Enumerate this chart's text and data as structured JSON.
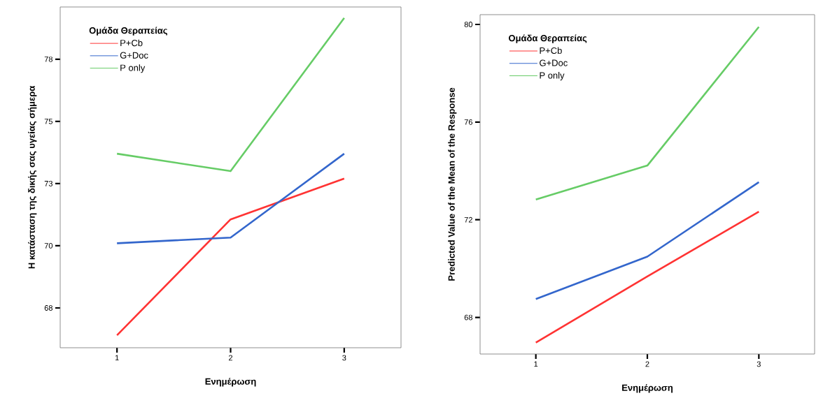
{
  "chart_data": [
    {
      "type": "line",
      "categories": [
        "1",
        "2",
        "3"
      ],
      "xlabel": "Ενημέρωση",
      "ylabel": "Η κατάσταση της δικής σας υγείας σήμερα",
      "legend_title": "Ομάδα Θεραπείας",
      "legend": "top left",
      "ylim": [
        65.9,
        79.6
      ],
      "yticks": [
        {
          "value": 67.5,
          "label": "68"
        },
        70,
        {
          "value": 72.5,
          "label": "73"
        },
        75,
        {
          "value": 77.5,
          "label": "78"
        }
      ],
      "series": [
        {
          "name": "P+Cb",
          "color": "#ff3333",
          "values": [
            66.4,
            71.06,
            72.7
          ]
        },
        {
          "name": "G+Doc",
          "color": "#3366cc",
          "values": [
            70.1,
            70.33,
            73.7
          ]
        },
        {
          "name": "P only",
          "color": "#66cc66",
          "values": [
            73.7,
            73.0,
            79.16
          ]
        }
      ]
    },
    {
      "type": "line",
      "categories": [
        "1",
        "2",
        "3"
      ],
      "xlabel": "Ενημέρωση",
      "ylabel": "Predicted Value of the Mean of the Response",
      "legend_title": "Ομάδα Θεραπείας",
      "legend": "top left",
      "ylim": [
        66.5,
        80.4
      ],
      "yticks": [
        68,
        72,
        76,
        80
      ],
      "series": [
        {
          "name": "P+Cb",
          "color": "#ff3333",
          "values": [
            66.97,
            69.68,
            72.33
          ]
        },
        {
          "name": "G+Doc",
          "color": "#3366cc",
          "values": [
            68.75,
            70.49,
            73.54
          ]
        },
        {
          "name": "P only",
          "color": "#66cc66",
          "values": [
            72.83,
            74.22,
            79.9
          ]
        }
      ]
    }
  ]
}
